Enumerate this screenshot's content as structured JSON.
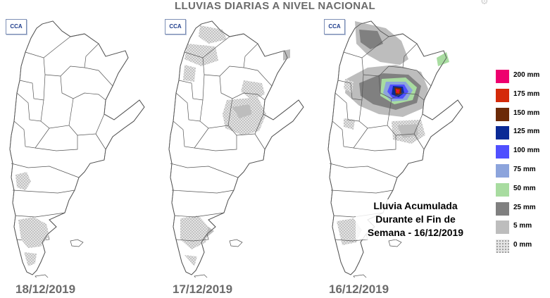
{
  "title": "LLUVIAS DIARIAS A NIVEL NACIONAL",
  "logo_text": "CCA",
  "panels": [
    {
      "date": "18/12/2019"
    },
    {
      "date": "17/12/2019"
    },
    {
      "date": "16/12/2019"
    }
  ],
  "legend": [
    {
      "label": "200 mm",
      "color": "#ee006e"
    },
    {
      "label": "175 mm",
      "color": "#d42a0a"
    },
    {
      "label": "150 mm",
      "color": "#6b2a08"
    },
    {
      "label": "125 mm",
      "color": "#0a2a96"
    },
    {
      "label": "100 mm",
      "color": "#5050ff"
    },
    {
      "label": "75 mm",
      "color": "#8ca4dc"
    },
    {
      "label": "50 mm",
      "color": "#a8dca0"
    },
    {
      "label": "25 mm",
      "color": "#808080"
    },
    {
      "label": "5 mm",
      "color": "#bdbdbd"
    },
    {
      "label": "0 mm",
      "color": "dotted"
    }
  ],
  "note": {
    "line1": "Lluvia Acumulada",
    "line2": "Durante el Fin de",
    "line3": "Semana - 16/12/2019"
  },
  "colors": {
    "outline": "#555555",
    "dotted_fill": "#d6d6d6",
    "grey_light": "#bdbdbd",
    "grey_dark": "#808080",
    "date_text": "#6b6b6b"
  }
}
